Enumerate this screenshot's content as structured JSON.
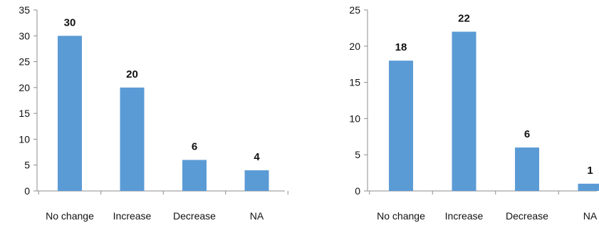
{
  "colors": {
    "bar": "#5b9bd5",
    "axis": "#8c8c8c",
    "text": "#111111"
  },
  "chart_data": [
    {
      "type": "bar",
      "title": "",
      "xlabel": "",
      "ylabel": "",
      "categories": [
        "No change",
        "Increase",
        "Decrease",
        "NA"
      ],
      "values": [
        30,
        20,
        6,
        4
      ],
      "ylim": [
        0,
        35
      ],
      "ytick_step": 5,
      "yticks": [
        "0",
        "5",
        "10",
        "15",
        "20",
        "25",
        "30",
        "35"
      ],
      "data_labels": [
        "30",
        "20",
        "6",
        "4"
      ],
      "grid": false,
      "legend": "none"
    },
    {
      "type": "bar",
      "title": "",
      "xlabel": "",
      "ylabel": "",
      "categories": [
        "No change",
        "Increase",
        "Decrease",
        "NA"
      ],
      "values": [
        18,
        22,
        6,
        1
      ],
      "ylim": [
        0,
        25
      ],
      "ytick_step": 5,
      "yticks": [
        "0",
        "5",
        "10",
        "15",
        "20",
        "25"
      ],
      "data_labels": [
        "18",
        "22",
        "6",
        "1"
      ],
      "grid": false,
      "legend": "none"
    }
  ]
}
